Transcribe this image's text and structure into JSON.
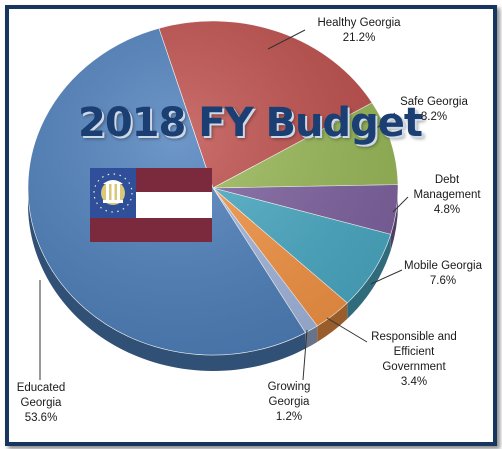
{
  "chart_data": {
    "type": "pie",
    "title": "2018 FY Budget",
    "slices": [
      {
        "name": "Healthy Georgia",
        "value": 21.2,
        "label_value": "21.2%",
        "color": "#c0504d"
      },
      {
        "name": "Safe Georgia",
        "value": 8.2,
        "label_value": "8.2%",
        "color": "#9bbb59"
      },
      {
        "name": "Debt Management",
        "value": 4.8,
        "label_value": "4.8%",
        "color": "#8064a2"
      },
      {
        "name": "Mobile Georgia",
        "value": 7.6,
        "label_value": "7.6%",
        "color": "#4bacc6"
      },
      {
        "name": "Responsible and Efficient Government",
        "value": 3.4,
        "label_value": "3.4%",
        "color": "#f79646"
      },
      {
        "name": "Growing Georgia",
        "value": 1.2,
        "label_value": "1.2%",
        "color": "#a5b9e0"
      },
      {
        "name": "Educated Georgia",
        "value": 53.6,
        "label_value": "53.6%",
        "color": "#4f81bd"
      }
    ],
    "legend": "none"
  },
  "labels": {
    "healthy_1": "Healthy Georgia",
    "safe_1": "Safe Georgia",
    "debt_1": "Debt",
    "debt_2": "Management",
    "mobile_1": "Mobile Georgia",
    "resp_1": "Responsible and",
    "resp_2": "Efficient",
    "resp_3": "Government",
    "grow_1": "Growing",
    "grow_2": "Georgia",
    "edu_1": "Educated",
    "edu_2": "Georgia"
  },
  "flag_icon": "georgia-state-flag-icon"
}
